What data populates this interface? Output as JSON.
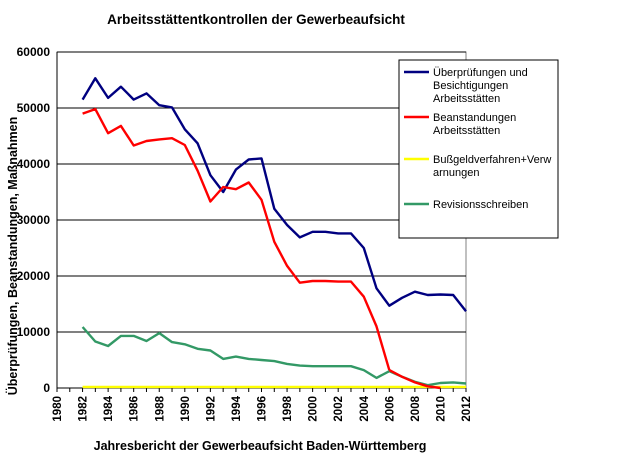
{
  "chart_data": {
    "type": "line",
    "title": "Arbeitsstättentkontrollen der Gewerbeaufsicht",
    "xlabel": "Jahresbericht der Gewerbeaufsicht Baden-Württemberg",
    "ylabel": "Überprüfungen, Beanstandungen, Maßnahmen",
    "xlim": [
      1980,
      2012
    ],
    "ylim": [
      0,
      60000
    ],
    "grid": true,
    "legend_position": "top-right",
    "y_ticks": [
      "0",
      "10000",
      "20000",
      "30000",
      "40000",
      "50000",
      "60000"
    ],
    "x_ticks": [
      "1980",
      "1982",
      "1984",
      "1986",
      "1988",
      "1990",
      "1992",
      "1994",
      "1996",
      "1998",
      "2000",
      "2002",
      "2004",
      "2006",
      "2008",
      "2010",
      "2012"
    ],
    "x": [
      1982,
      1983,
      1984,
      1985,
      1986,
      1987,
      1988,
      1989,
      1990,
      1991,
      1992,
      1993,
      1994,
      1995,
      1996,
      1997,
      1998,
      1999,
      2000,
      2001,
      2002,
      2003,
      2004,
      2005,
      2006,
      2007,
      2008,
      2009,
      2010,
      2011,
      2012
    ],
    "series": [
      {
        "name": "Überprüfungen und Besichtigungen Arbeitsstätten",
        "legend_lines": [
          "Überprüfungen und",
          "Besichtigungen",
          "Arbeitsstätten"
        ],
        "color": "#000080",
        "values": [
          51500,
          55300,
          51800,
          53800,
          51500,
          52600,
          50500,
          50100,
          46200,
          43700,
          38000,
          35000,
          39000,
          40800,
          41000,
          32000,
          29100,
          26900,
          27900,
          27900,
          27600,
          27600,
          25000,
          17800,
          14700,
          16100,
          17200,
          16600,
          16700,
          16600,
          13700
        ]
      },
      {
        "name": "Beanstandungen Arbeitsstätten",
        "legend_lines": [
          "Beanstandungen",
          "Arbeitsstätten"
        ],
        "color": "#ff0000",
        "values": [
          49000,
          49800,
          45500,
          46800,
          43300,
          44100,
          44400,
          44600,
          43400,
          38800,
          33300,
          35900,
          35500,
          36700,
          33600,
          26100,
          21800,
          18800,
          19100,
          19100,
          19000,
          19000,
          16300,
          11000,
          3200,
          null,
          null,
          null,
          null,
          null,
          null
        ]
      },
      {
        "name": "Bußgeldverfahren+Verwarnungen",
        "legend_lines": [
          "Bußgeldverfahren+Verw",
          "arnungen"
        ],
        "color": "#ffff00",
        "values": [
          200,
          200,
          200,
          200,
          200,
          200,
          200,
          200,
          200,
          200,
          200,
          200,
          200,
          200,
          200,
          200,
          200,
          200,
          200,
          200,
          200,
          200,
          200,
          200,
          200,
          200,
          200,
          200,
          200,
          200,
          200
        ]
      },
      {
        "name": "Revisionsschreiben",
        "legend_lines": [
          "Revisionsschreiben"
        ],
        "color": "#339966",
        "values": [
          10900,
          8300,
          7500,
          9300,
          9300,
          8400,
          9800,
          8200,
          7800,
          7000,
          6700,
          5200,
          5600,
          5200,
          5000,
          4800,
          4300,
          4000,
          3900,
          3900,
          3900,
          3900,
          3200,
          1800,
          3000,
          2000,
          1100,
          500,
          900,
          1000,
          800
        ]
      }
    ],
    "extra_segments": [
      {
        "series": "Beanstandungen Arbeitsstätten",
        "x": [
          2006,
          2007,
          2008,
          2009,
          2010
        ],
        "values": [
          3200,
          2000,
          1000,
          300,
          0
        ]
      }
    ]
  }
}
